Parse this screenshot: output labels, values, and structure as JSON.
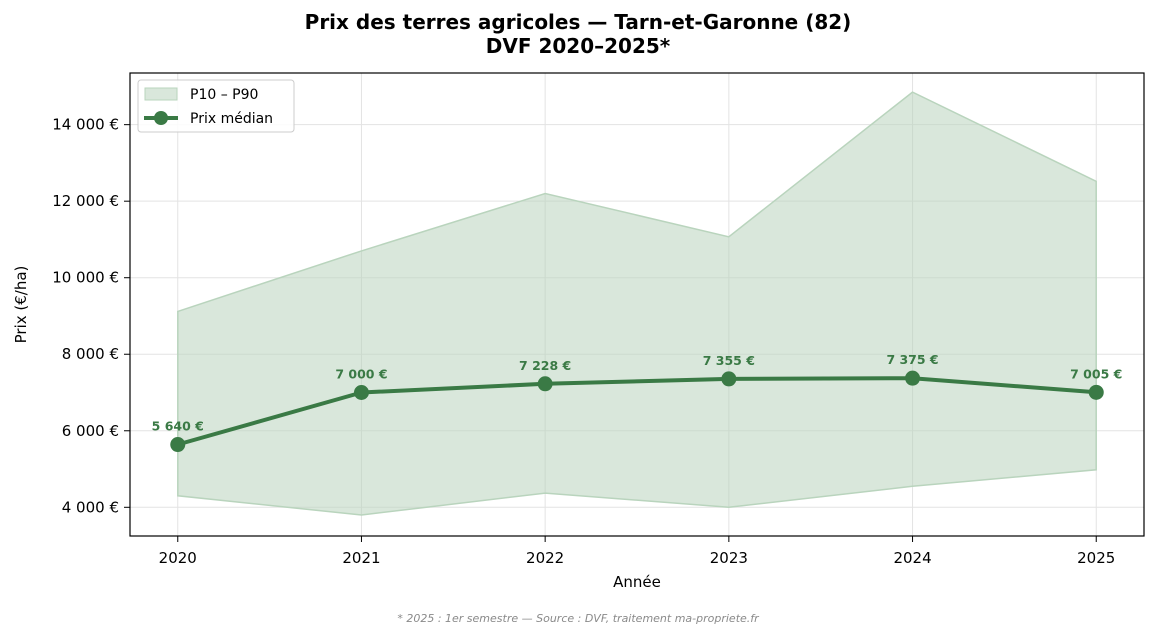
{
  "chart_data": {
    "type": "line",
    "title_line1": "Prix des terres agricoles — Tarn-et-Garonne (82)",
    "title_line2": "DVF 2020–2025*",
    "xlabel": "Année",
    "ylabel": "Prix (€/ha)",
    "x": [
      2020,
      2021,
      2022,
      2023,
      2024,
      2025
    ],
    "x_labels": [
      "2020",
      "2021",
      "2022",
      "2023",
      "2024",
      "2025"
    ],
    "ylim": [
      3250,
      15350
    ],
    "y_ticks": [
      4000,
      6000,
      8000,
      10000,
      12000,
      14000
    ],
    "y_tick_labels": [
      "4 000 €",
      "6 000 €",
      "8 000 €",
      "10 000 €",
      "12 000 €",
      "14 000 €"
    ],
    "grid": true,
    "legend_position": "top-left",
    "series": [
      {
        "name": "Prix médian",
        "kind": "line",
        "color": "#3a7a45",
        "values": [
          5640,
          7000,
          7228,
          7355,
          7375,
          7005
        ],
        "point_labels": [
          "5 640 €",
          "7 000 €",
          "7 228 €",
          "7 355 €",
          "7 375 €",
          "7 005 €"
        ]
      },
      {
        "name": "P10 – P90",
        "kind": "band",
        "color": "#b9d4bd",
        "lower": [
          4300,
          3800,
          4370,
          4000,
          4550,
          4980
        ],
        "upper": [
          9120,
          10700,
          12200,
          11070,
          14850,
          12520
        ]
      }
    ],
    "footnote": "* 2025 : 1er semestre — Source : DVF, traitement ma-propriete.fr"
  }
}
